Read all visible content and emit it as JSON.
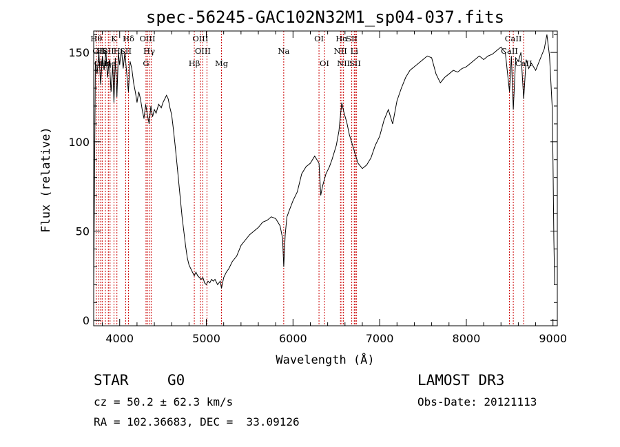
{
  "chart_data": {
    "type": "line",
    "title": "spec-56245-GAC102N32M1_sp04-037.fits",
    "xlabel": "Wavelength (Å)",
    "ylabel": "Flux (relative)",
    "xlim": [
      3700,
      9050
    ],
    "ylim": [
      -3,
      162
    ],
    "xticks": [
      4000,
      5000,
      6000,
      7000,
      8000,
      9000
    ],
    "yticks": [
      0,
      50,
      100,
      150
    ],
    "grid": false,
    "line_color": "#000000",
    "marker_color": "#cc0000",
    "series": [
      {
        "name": "flux",
        "points": [
          [
            3700,
            18
          ],
          [
            3720,
            145
          ],
          [
            3740,
            138
          ],
          [
            3760,
            150
          ],
          [
            3780,
            132
          ],
          [
            3800,
            148
          ],
          [
            3820,
            140
          ],
          [
            3840,
            151
          ],
          [
            3860,
            136
          ],
          [
            3880,
            146
          ],
          [
            3900,
            128
          ],
          [
            3920,
            143
          ],
          [
            3934,
            122
          ],
          [
            3950,
            147
          ],
          [
            3968,
            125
          ],
          [
            3985,
            150
          ],
          [
            4000,
            143
          ],
          [
            4020,
            152
          ],
          [
            4040,
            141
          ],
          [
            4060,
            150
          ],
          [
            4080,
            139
          ],
          [
            4101,
            128
          ],
          [
            4120,
            145
          ],
          [
            4140,
            141
          ],
          [
            4160,
            133
          ],
          [
            4180,
            128
          ],
          [
            4200,
            122
          ],
          [
            4220,
            128
          ],
          [
            4240,
            124
          ],
          [
            4260,
            118
          ],
          [
            4280,
            113
          ],
          [
            4300,
            121
          ],
          [
            4320,
            115
          ],
          [
            4340,
            110
          ],
          [
            4360,
            120
          ],
          [
            4380,
            114
          ],
          [
            4400,
            118
          ],
          [
            4420,
            116
          ],
          [
            4450,
            121
          ],
          [
            4480,
            119
          ],
          [
            4500,
            122
          ],
          [
            4520,
            124
          ],
          [
            4540,
            126
          ],
          [
            4560,
            124
          ],
          [
            4580,
            119
          ],
          [
            4600,
            115
          ],
          [
            4620,
            107
          ],
          [
            4640,
            98
          ],
          [
            4660,
            88
          ],
          [
            4680,
            78
          ],
          [
            4700,
            68
          ],
          [
            4720,
            58
          ],
          [
            4740,
            50
          ],
          [
            4760,
            42
          ],
          [
            4780,
            35
          ],
          [
            4800,
            31
          ],
          [
            4820,
            29
          ],
          [
            4840,
            27
          ],
          [
            4861,
            25
          ],
          [
            4880,
            27
          ],
          [
            4900,
            25
          ],
          [
            4920,
            24
          ],
          [
            4940,
            23
          ],
          [
            4960,
            24
          ],
          [
            4980,
            21
          ],
          [
            5000,
            20
          ],
          [
            5020,
            22
          ],
          [
            5040,
            21
          ],
          [
            5060,
            23
          ],
          [
            5080,
            22
          ],
          [
            5100,
            23
          ],
          [
            5130,
            20
          ],
          [
            5160,
            22
          ],
          [
            5175,
            18
          ],
          [
            5200,
            24
          ],
          [
            5230,
            27
          ],
          [
            5260,
            29
          ],
          [
            5300,
            33
          ],
          [
            5350,
            36
          ],
          [
            5400,
            42
          ],
          [
            5450,
            45
          ],
          [
            5500,
            48
          ],
          [
            5550,
            50
          ],
          [
            5600,
            52
          ],
          [
            5650,
            55
          ],
          [
            5700,
            56
          ],
          [
            5750,
            58
          ],
          [
            5800,
            57
          ],
          [
            5850,
            53
          ],
          [
            5880,
            46
          ],
          [
            5893,
            30
          ],
          [
            5910,
            48
          ],
          [
            5930,
            58
          ],
          [
            5960,
            62
          ],
          [
            6000,
            67
          ],
          [
            6050,
            72
          ],
          [
            6100,
            82
          ],
          [
            6150,
            86
          ],
          [
            6200,
            88
          ],
          [
            6250,
            92
          ],
          [
            6300,
            88
          ],
          [
            6320,
            70
          ],
          [
            6340,
            75
          ],
          [
            6380,
            82
          ],
          [
            6420,
            86
          ],
          [
            6450,
            90
          ],
          [
            6500,
            98
          ],
          [
            6530,
            106
          ],
          [
            6563,
            122
          ],
          [
            6590,
            116
          ],
          [
            6620,
            111
          ],
          [
            6650,
            104
          ],
          [
            6700,
            96
          ],
          [
            6750,
            88
          ],
          [
            6800,
            85
          ],
          [
            6850,
            87
          ],
          [
            6900,
            91
          ],
          [
            6950,
            98
          ],
          [
            7000,
            103
          ],
          [
            7050,
            112
          ],
          [
            7100,
            118
          ],
          [
            7150,
            110
          ],
          [
            7200,
            123
          ],
          [
            7250,
            130
          ],
          [
            7300,
            136
          ],
          [
            7350,
            140
          ],
          [
            7400,
            142
          ],
          [
            7450,
            144
          ],
          [
            7500,
            146
          ],
          [
            7550,
            148
          ],
          [
            7600,
            147
          ],
          [
            7650,
            138
          ],
          [
            7700,
            133
          ],
          [
            7750,
            136
          ],
          [
            7800,
            138
          ],
          [
            7850,
            140
          ],
          [
            7900,
            139
          ],
          [
            7950,
            141
          ],
          [
            8000,
            142
          ],
          [
            8050,
            144
          ],
          [
            8100,
            146
          ],
          [
            8150,
            148
          ],
          [
            8200,
            146
          ],
          [
            8250,
            148
          ],
          [
            8300,
            149
          ],
          [
            8350,
            151
          ],
          [
            8400,
            153
          ],
          [
            8450,
            150
          ],
          [
            8498,
            128
          ],
          [
            8520,
            148
          ],
          [
            8542,
            118
          ],
          [
            8570,
            147
          ],
          [
            8600,
            145
          ],
          [
            8630,
            150
          ],
          [
            8662,
            124
          ],
          [
            8690,
            146
          ],
          [
            8720,
            141
          ],
          [
            8750,
            144
          ],
          [
            8800,
            140
          ],
          [
            8850,
            146
          ],
          [
            8900,
            152
          ],
          [
            8930,
            160
          ],
          [
            8960,
            148
          ],
          [
            8990,
            120
          ],
          [
            9000,
            90
          ],
          [
            9010,
            45
          ],
          [
            9020,
            20
          ]
        ]
      }
    ],
    "line_markers": [
      {
        "wavelength": 3730,
        "row": 0,
        "label": "Hθ"
      },
      {
        "wavelength": 3760,
        "row": 1,
        "label": "OII"
      },
      {
        "wavelength": 3780,
        "row": 2,
        "label": "OII"
      },
      {
        "wavelength": 3798,
        "row": 1,
        "label": "Hε"
      },
      {
        "wavelength": 3835,
        "row": 2,
        "label": "Hη"
      },
      {
        "wavelength": 3869,
        "row": 1,
        "label": "SII"
      },
      {
        "wavelength": 3889,
        "row": 2,
        "label": "He"
      },
      {
        "wavelength": 3934,
        "row": 0,
        "label": "K"
      },
      {
        "wavelength": 3968,
        "row": 1,
        "label": "H"
      },
      {
        "wavelength": 4070,
        "row": 1,
        "label": "SII"
      },
      {
        "wavelength": 4101,
        "row": 0,
        "label": "Hδ"
      },
      {
        "wavelength": 4304,
        "row": 2,
        "label": "G"
      },
      {
        "wavelength": 4320,
        "row": 0,
        "label": "OIII"
      },
      {
        "wavelength": 4340,
        "row": 1,
        "label": "Hγ"
      },
      {
        "wavelength": 4363,
        "row": 0,
        "label": ""
      },
      {
        "wavelength": 4861,
        "row": 2,
        "label": "Hβ"
      },
      {
        "wavelength": 4931,
        "row": 0,
        "label": "OIII"
      },
      {
        "wavelength": 4959,
        "row": 1,
        "label": "OIII"
      },
      {
        "wavelength": 5007,
        "row": 1,
        "label": ""
      },
      {
        "wavelength": 5175,
        "row": 2,
        "label": "Mg"
      },
      {
        "wavelength": 5893,
        "row": 1,
        "label": "Na"
      },
      {
        "wavelength": 6300,
        "row": 0,
        "label": "OI"
      },
      {
        "wavelength": 6363,
        "row": 2,
        "label": "OI"
      },
      {
        "wavelength": 6548,
        "row": 1,
        "label": "NII"
      },
      {
        "wavelength": 6563,
        "row": 0,
        "label": "Hα"
      },
      {
        "wavelength": 6583,
        "row": 2,
        "label": "NII"
      },
      {
        "wavelength": 6678,
        "row": 0,
        "label": "SII"
      },
      {
        "wavelength": 6707,
        "row": 1,
        "label": "Li"
      },
      {
        "wavelength": 6716,
        "row": 2,
        "label": "SII"
      },
      {
        "wavelength": 6731,
        "row": 0,
        "label": ""
      },
      {
        "wavelength": 8498,
        "row": 1,
        "label": "CaII"
      },
      {
        "wavelength": 8542,
        "row": 0,
        "label": "CaII"
      },
      {
        "wavelength": 8662,
        "row": 2,
        "label": "CaII"
      }
    ]
  },
  "info": {
    "object_class": "STAR",
    "subclass": "G0",
    "survey": "LAMOST DR3",
    "redshift": "cz = 50.2 ± 62.3 km/s",
    "obs_date": "Obs-Date: 20121113",
    "coords": "RA = 102.36683, DEC =  33.09126"
  }
}
